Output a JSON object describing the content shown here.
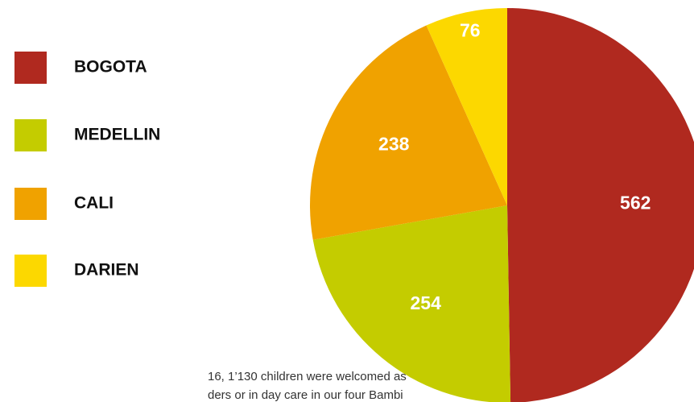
{
  "chart_data": {
    "type": "pie",
    "categories": [
      "BOGOTA",
      "MEDELLIN",
      "CALI",
      "DARIEN"
    ],
    "values": [
      562,
      254,
      238,
      76
    ],
    "colors": [
      "#b0291f",
      "#c4cc00",
      "#f0a200",
      "#fcd800"
    ],
    "legend": "left",
    "annotations": [
      "16, 1’130 children were welcomed as",
      "ders or in day care in our four  Bambi"
    ]
  }
}
